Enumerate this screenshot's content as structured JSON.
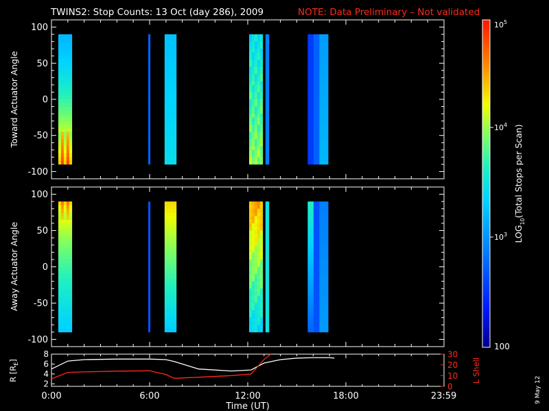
{
  "header": {
    "title": "TWINS2: Stop Counts: 13 Oct (day 286), 2009",
    "note": "NOTE: Data Preliminary – Not validated",
    "note_color": "#ff2a1a"
  },
  "side_date": "9 May 12",
  "chart_data": [
    {
      "type": "heatmap",
      "panel": "top",
      "ylabel": "Toward Actuator Angle",
      "xlim": [
        "0:00",
        "23:59"
      ],
      "ylim": [
        -110,
        110
      ],
      "yticks": [
        100,
        50,
        0,
        -50,
        -100
      ],
      "color_scale": "log",
      "data_blocks": [
        {
          "start": "0:25",
          "end": "1:15",
          "note": "low at top, high near -70"
        },
        {
          "start": "5:55",
          "end": "6:02"
        },
        {
          "start": "6:55",
          "end": "7:38"
        },
        {
          "start": "12:05",
          "end": "12:55"
        },
        {
          "start": "13:05",
          "end": "13:18"
        },
        {
          "start": "15:40",
          "end": "16:55"
        }
      ]
    },
    {
      "type": "heatmap",
      "panel": "bottom",
      "ylabel": "Away Actuator Angle",
      "xlim": [
        "0:00",
        "23:59"
      ],
      "ylim": [
        -110,
        110
      ],
      "yticks": [
        100,
        50,
        0,
        -50,
        -100
      ],
      "color_scale": "log",
      "data_blocks": [
        {
          "start": "0:25",
          "end": "1:15",
          "note": "high at top"
        },
        {
          "start": "5:55",
          "end": "6:02"
        },
        {
          "start": "6:55",
          "end": "7:38"
        },
        {
          "start": "12:05",
          "end": "12:55"
        },
        {
          "start": "13:05",
          "end": "13:18"
        },
        {
          "start": "15:40",
          "end": "16:55"
        }
      ]
    },
    {
      "type": "colorbar",
      "label_parts": [
        "LOG",
        "10",
        "(Total Stops per Scan)"
      ],
      "ticks": [
        "10",
        "5",
        "10",
        "4",
        "10",
        "3",
        "100"
      ],
      "scale": "log",
      "range": [
        100,
        100000
      ]
    },
    {
      "type": "line",
      "panel": "ephemeris",
      "xlabel": "Time (UT)",
      "xticks": [
        "0:00",
        "6:00",
        "12:00",
        "18:00",
        "23:59"
      ],
      "ylabel_left": "R [R",
      "ylabel_left_sub": "E",
      "ylabel_left_end": "]",
      "ylabel_right": "L Shell",
      "yticks_left": [
        "8",
        "6",
        "4",
        "2"
      ],
      "yticks_right": [
        "30",
        "20",
        "10",
        "0"
      ],
      "ylim_left": [
        1.5,
        8
      ],
      "ylim_right": [
        0,
        30
      ],
      "series": [
        {
          "axis": "left",
          "color": "#ffffff",
          "x": [
            0,
            1.0,
            2.0,
            4.0,
            6.0,
            7.0,
            7.5,
            9.0,
            11.0,
            12.2,
            13.0,
            14.0,
            15.0,
            16.0,
            17.0,
            17.3
          ],
          "y": [
            5.0,
            6.6,
            6.9,
            7.0,
            7.0,
            6.9,
            6.5,
            5.0,
            4.6,
            4.8,
            6.2,
            6.9,
            7.2,
            7.3,
            7.3,
            7.2
          ]
        },
        {
          "axis": "right",
          "color": "#ff2a1a",
          "x": [
            0,
            1.0,
            2.0,
            4.0,
            6.0,
            7.0,
            7.5,
            9.0,
            11.0,
            12.2,
            13.0,
            13.4
          ],
          "y": [
            7,
            13,
            13.5,
            14.2,
            14.5,
            11.0,
            7.5,
            8.5,
            10.0,
            11.5,
            25.0,
            30.0
          ]
        }
      ]
    }
  ]
}
